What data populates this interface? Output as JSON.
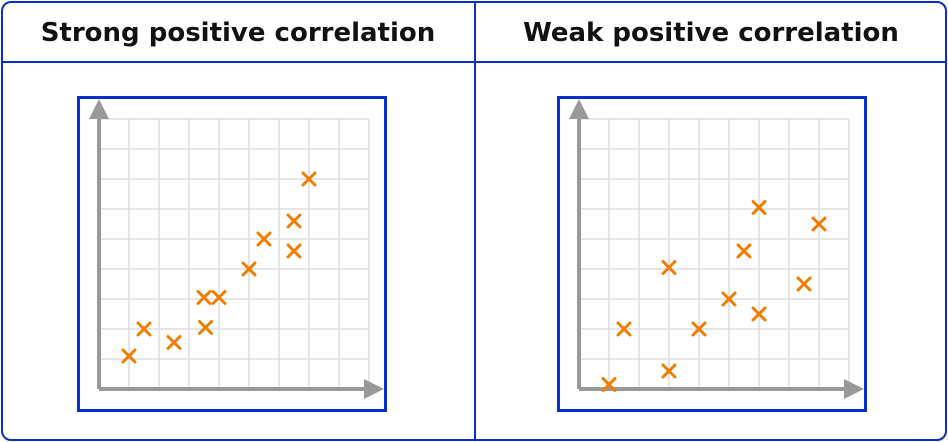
{
  "colors": {
    "border": "#0a2ec8",
    "grid": "#dddddd",
    "axis": "#999999",
    "marker": "#f07d00"
  },
  "chart_data": [
    {
      "type": "scatter",
      "title": "Strong positive correlation",
      "xlabel": "",
      "ylabel": "",
      "grid": true,
      "xlim": [
        0,
        9
      ],
      "ylim": [
        0,
        9
      ],
      "marker": "x-icon",
      "points": [
        {
          "x": 1.0,
          "y": 1.1
        },
        {
          "x": 1.5,
          "y": 2.0
        },
        {
          "x": 2.5,
          "y": 1.55
        },
        {
          "x": 3.5,
          "y": 3.05
        },
        {
          "x": 3.55,
          "y": 2.05
        },
        {
          "x": 4.0,
          "y": 3.05
        },
        {
          "x": 5.0,
          "y": 4.0
        },
        {
          "x": 5.5,
          "y": 5.0
        },
        {
          "x": 6.5,
          "y": 4.6
        },
        {
          "x": 6.5,
          "y": 5.6
        },
        {
          "x": 7.0,
          "y": 7.0
        }
      ]
    },
    {
      "type": "scatter",
      "title": "Weak positive correlation",
      "xlabel": "",
      "ylabel": "",
      "grid": true,
      "xlim": [
        0,
        9
      ],
      "ylim": [
        0,
        9
      ],
      "marker": "x-icon",
      "points": [
        {
          "x": 1.0,
          "y": 0.15
        },
        {
          "x": 1.5,
          "y": 2.0
        },
        {
          "x": 3.0,
          "y": 0.6
        },
        {
          "x": 3.0,
          "y": 4.05
        },
        {
          "x": 4.0,
          "y": 2.0
        },
        {
          "x": 5.0,
          "y": 3.0
        },
        {
          "x": 5.5,
          "y": 4.6
        },
        {
          "x": 6.0,
          "y": 2.5
        },
        {
          "x": 6.0,
          "y": 6.05
        },
        {
          "x": 7.5,
          "y": 3.5
        },
        {
          "x": 8.0,
          "y": 5.5
        }
      ]
    }
  ]
}
